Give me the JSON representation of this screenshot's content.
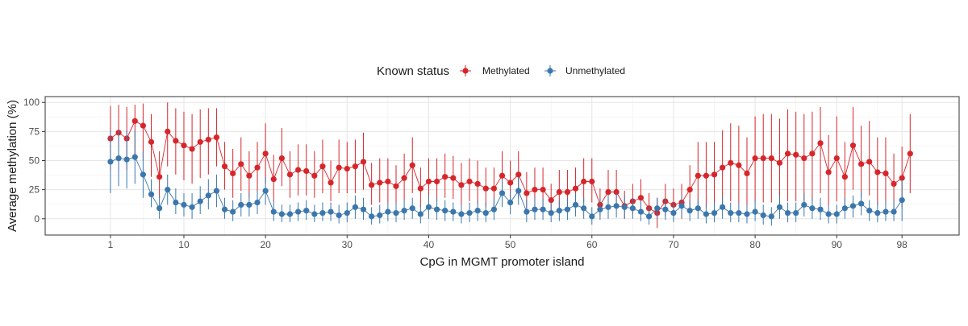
{
  "chart_data": {
    "type": "scatter",
    "xlabel": "CpG in MGMT promoter island",
    "ylabel": "Average methylation (%)",
    "xlim": [
      -7,
      105
    ],
    "ylim": [
      -14,
      105
    ],
    "x_ticks": [
      1,
      10,
      20,
      30,
      40,
      50,
      60,
      70,
      80,
      90,
      98
    ],
    "y_ticks": [
      0,
      25,
      50,
      75,
      100
    ],
    "grid": true,
    "legend": {
      "title": "Known status",
      "position": "top",
      "entries": [
        "Methylated",
        "Unmethylated"
      ]
    },
    "series": [
      {
        "name": "Methylated",
        "color": "#d7262b",
        "values": [
          69,
          74,
          69,
          84,
          80,
          66,
          36,
          75,
          67,
          63,
          60,
          66,
          68,
          70,
          45,
          39,
          47,
          37,
          44,
          56,
          34,
          52,
          38,
          42,
          41,
          37,
          45,
          31,
          44,
          43,
          45,
          49,
          29,
          31,
          32,
          28,
          35,
          46,
          26,
          32,
          32,
          36,
          35,
          29,
          32,
          30,
          26,
          26,
          37,
          31,
          38,
          22,
          25,
          25,
          16,
          23,
          23,
          26,
          32,
          32,
          12,
          23,
          23,
          11,
          15,
          18,
          9,
          5,
          15,
          12,
          14,
          25,
          37,
          37,
          38,
          44,
          48,
          46,
          39,
          52,
          52,
          52,
          48,
          56,
          55,
          52,
          56,
          65,
          40,
          52,
          36,
          63,
          47,
          49,
          40,
          39,
          30,
          35,
          56
        ],
        "err_low": [
          42,
          40,
          42,
          55,
          50,
          36,
          18,
          45,
          38,
          33,
          30,
          35,
          38,
          45,
          25,
          18,
          24,
          18,
          22,
          30,
          15,
          28,
          18,
          20,
          20,
          18,
          22,
          15,
          22,
          22,
          22,
          25,
          12,
          14,
          14,
          12,
          16,
          22,
          10,
          14,
          15,
          18,
          17,
          12,
          15,
          13,
          10,
          10,
          18,
          13,
          18,
          8,
          10,
          10,
          4,
          8,
          8,
          10,
          14,
          14,
          2,
          8,
          8,
          0,
          4,
          5,
          0,
          -8,
          2,
          0,
          0,
          8,
          10,
          10,
          10,
          12,
          15,
          14,
          10,
          14,
          14,
          14,
          12,
          15,
          15,
          14,
          15,
          22,
          12,
          15,
          10,
          25,
          18,
          20,
          12,
          12,
          8,
          10,
          22
        ],
        "err_high": [
          97,
          98,
          96,
          98,
          99,
          90,
          58,
          100,
          95,
          92,
          90,
          94,
          95,
          95,
          66,
          60,
          70,
          58,
          66,
          82,
          55,
          78,
          58,
          64,
          64,
          58,
          68,
          50,
          68,
          66,
          68,
          74,
          48,
          52,
          52,
          46,
          56,
          70,
          44,
          52,
          52,
          56,
          54,
          48,
          52,
          50,
          44,
          44,
          58,
          50,
          58,
          40,
          44,
          44,
          30,
          42,
          42,
          44,
          52,
          52,
          26,
          42,
          42,
          24,
          30,
          34,
          22,
          18,
          30,
          26,
          30,
          46,
          66,
          66,
          66,
          76,
          82,
          80,
          70,
          88,
          90,
          90,
          86,
          94,
          92,
          90,
          92,
          96,
          72,
          88,
          66,
          96,
          80,
          84,
          70,
          70,
          56,
          62,
          90
        ]
      },
      {
        "name": "Unmethylated",
        "color": "#3b77ad",
        "values": [
          49,
          52,
          51,
          53,
          38,
          21,
          9,
          25,
          14,
          12,
          10,
          15,
          20,
          24,
          8,
          6,
          12,
          12,
          14,
          24,
          6,
          4,
          4,
          6,
          7,
          4,
          5,
          6,
          3,
          5,
          10,
          8,
          2,
          3,
          6,
          5,
          7,
          9,
          4,
          10,
          8,
          7,
          6,
          4,
          5,
          7,
          5,
          8,
          22,
          14,
          24,
          6,
          8,
          8,
          5,
          7,
          8,
          12,
          9,
          2,
          8,
          10,
          11,
          10,
          9,
          6,
          2,
          9,
          8,
          5,
          11,
          7,
          9,
          4,
          5,
          10,
          5,
          5,
          4,
          6,
          3,
          2,
          10,
          5,
          5,
          12,
          9,
          8,
          4,
          4,
          9,
          11,
          13,
          7,
          5,
          6,
          6,
          16
        ],
        "err_low": [
          22,
          28,
          26,
          30,
          18,
          10,
          0,
          12,
          4,
          2,
          0,
          4,
          8,
          10,
          0,
          -2,
          2,
          2,
          4,
          12,
          -2,
          -3,
          -3,
          -2,
          -1,
          -3,
          -2,
          -2,
          -4,
          -3,
          0,
          -1,
          -5,
          -4,
          -2,
          -3,
          -1,
          0,
          -4,
          0,
          -1,
          -2,
          -2,
          -4,
          -3,
          -2,
          -3,
          -1,
          10,
          4,
          12,
          -3,
          -1,
          -1,
          -3,
          -2,
          -1,
          2,
          0,
          -5,
          -1,
          0,
          1,
          0,
          0,
          -2,
          -5,
          0,
          -1,
          -3,
          1,
          -2,
          0,
          -4,
          -3,
          0,
          -3,
          -3,
          -4,
          -2,
          -5,
          -6,
          0,
          -3,
          -3,
          2,
          0,
          -1,
          -4,
          -4,
          0,
          1,
          3,
          -2,
          -3,
          -2,
          -2,
          -2
        ],
        "err_high": [
          76,
          76,
          76,
          76,
          58,
          34,
          20,
          38,
          26,
          22,
          22,
          28,
          34,
          38,
          18,
          16,
          22,
          22,
          24,
          36,
          16,
          12,
          12,
          14,
          16,
          12,
          14,
          14,
          12,
          14,
          20,
          18,
          10,
          12,
          14,
          14,
          16,
          18,
          12,
          20,
          18,
          16,
          14,
          12,
          14,
          16,
          14,
          18,
          34,
          24,
          36,
          16,
          18,
          18,
          14,
          16,
          18,
          22,
          18,
          10,
          18,
          20,
          22,
          20,
          18,
          16,
          10,
          18,
          18,
          14,
          20,
          16,
          18,
          12,
          14,
          20,
          14,
          14,
          12,
          16,
          12,
          10,
          20,
          14,
          14,
          22,
          18,
          18,
          12,
          12,
          18,
          20,
          24,
          16,
          14,
          16,
          16,
          34
        ]
      }
    ]
  }
}
